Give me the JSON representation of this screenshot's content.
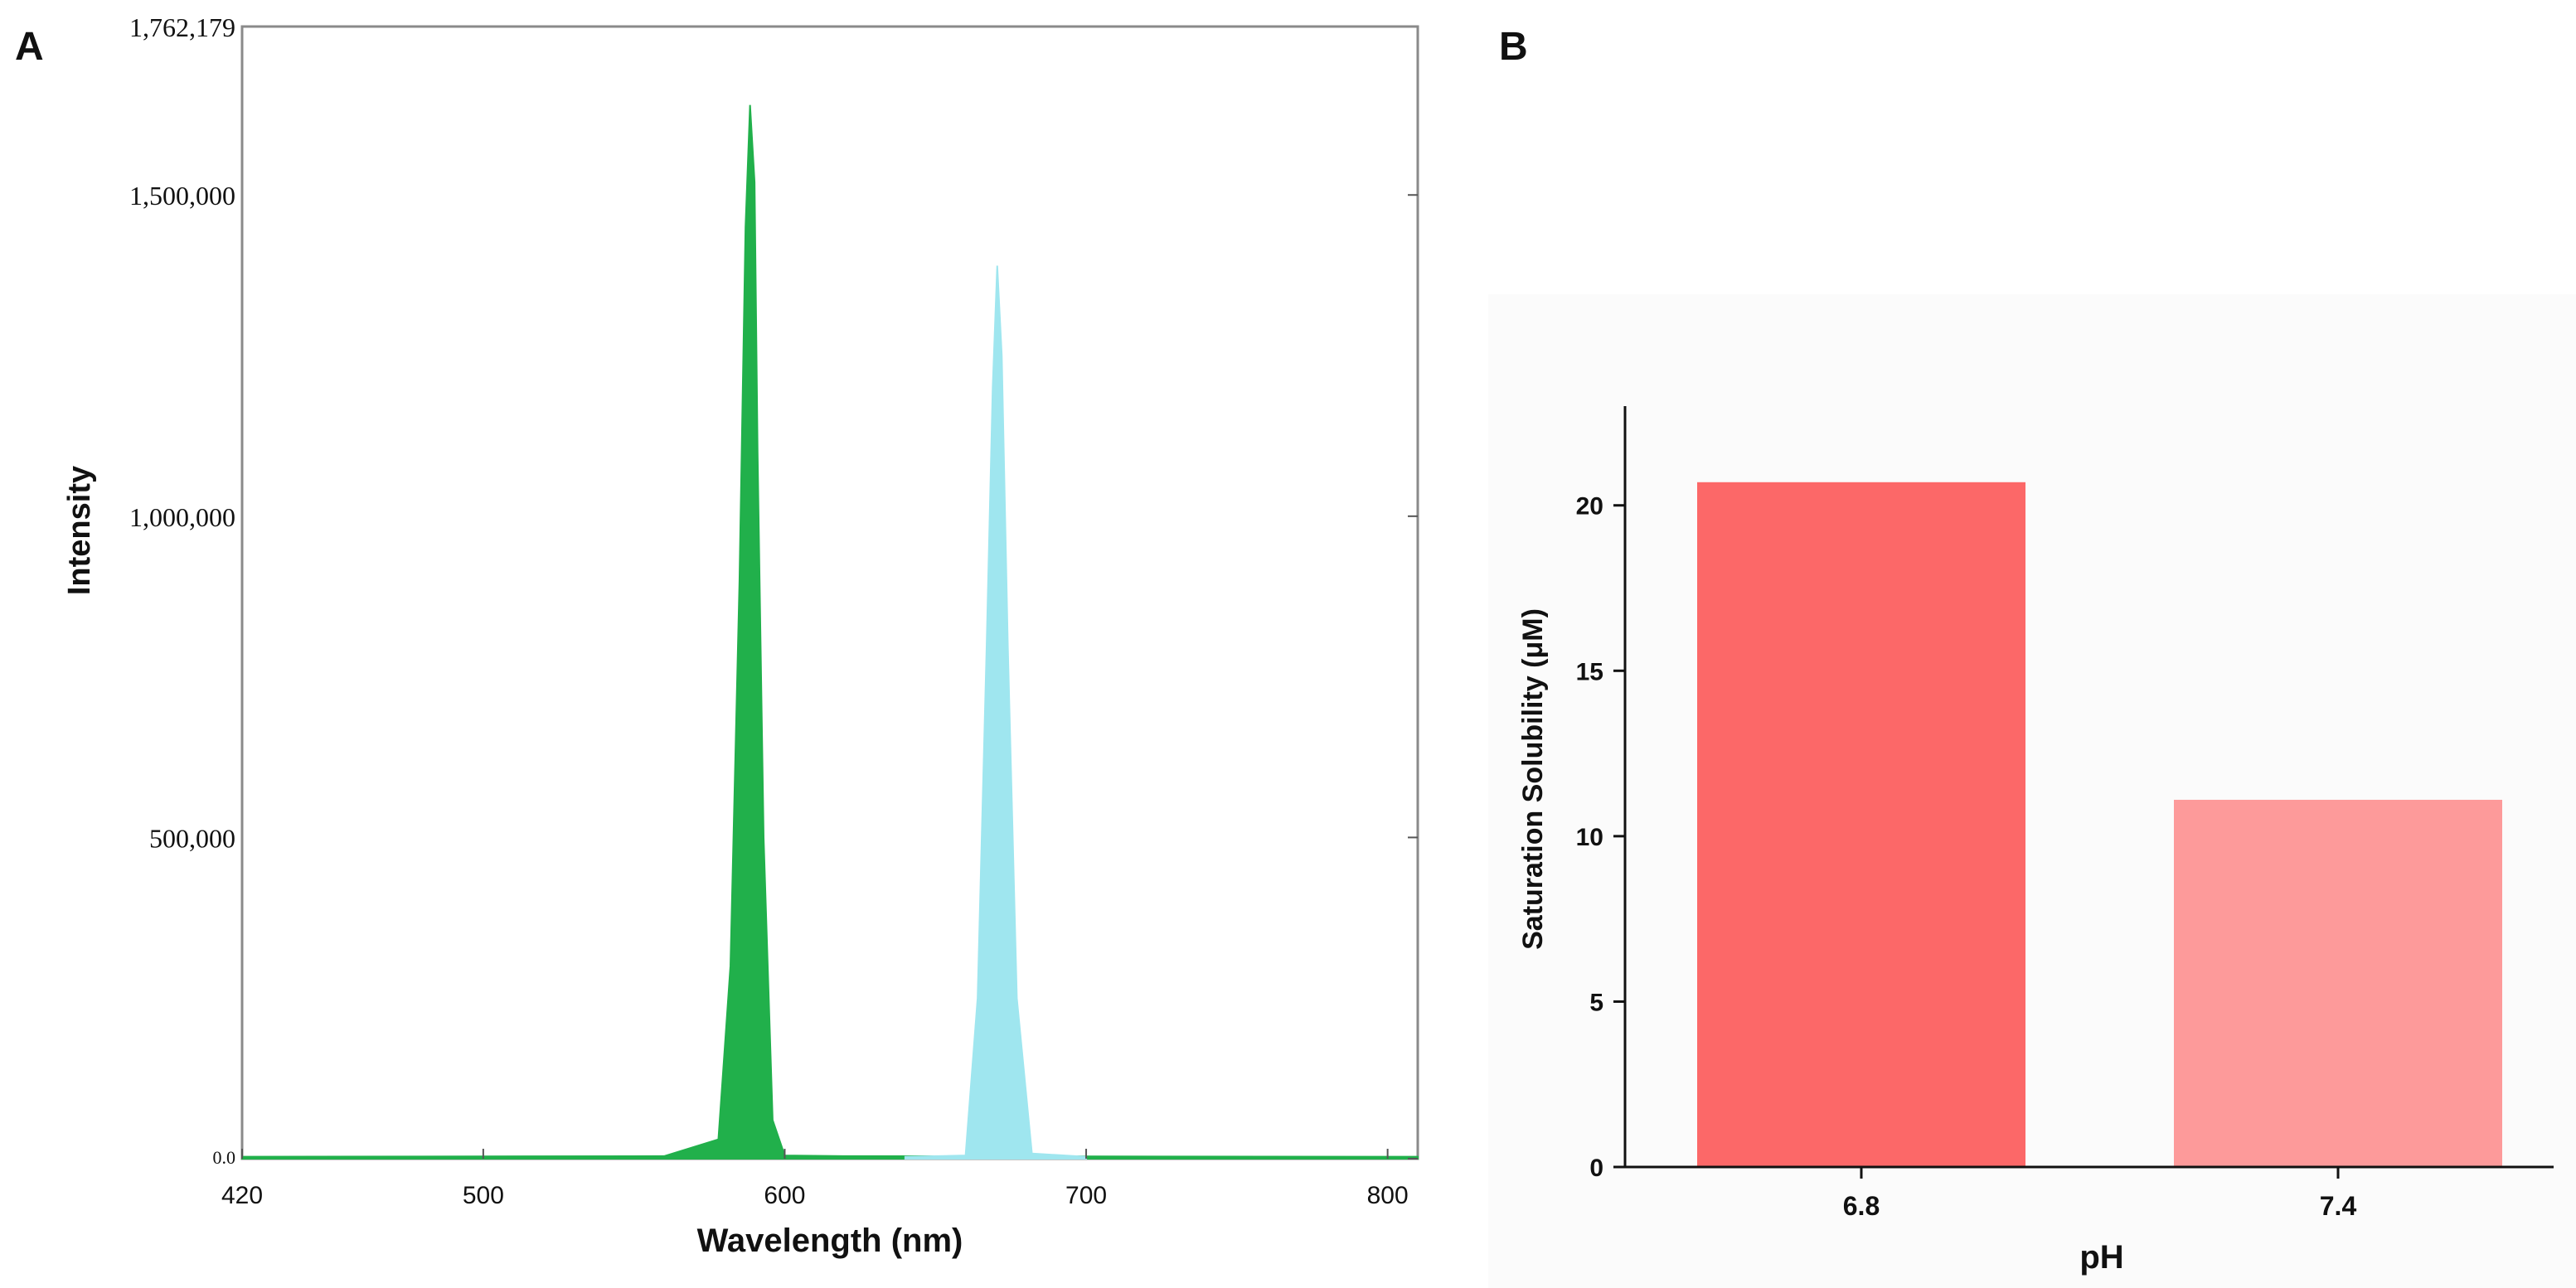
{
  "panels": [
    {
      "label": "A",
      "chart_data": {
        "type": "area",
        "title": "",
        "xlabel": "Wavelength (nm)",
        "ylabel": "Intensity",
        "xlim": [
          420,
          810
        ],
        "ylim": [
          0,
          1762179
        ],
        "x_ticks": [
          420,
          500,
          600,
          700,
          800
        ],
        "x_tick_labels": [
          "420",
          "500",
          "600",
          "700",
          "800"
        ],
        "y_ticks": [
          0,
          500000,
          1000000,
          1500000,
          1762179
        ],
        "y_tick_labels": [
          "0.0",
          "500,000",
          "1,000,000",
          "1,500,000",
          "1,762,179"
        ],
        "grid": false,
        "series": [
          {
            "name": "green peak",
            "color": "#21b04b",
            "x": [
              420,
              560,
              578,
              582,
              585,
              587,
              588.5,
              590,
              591,
              593,
              596,
              600,
              620,
              810
            ],
            "y": [
              3000,
              4000,
              30000,
              300000,
              900000,
              1450000,
              1640000,
              1520000,
              1100000,
              500000,
              60000,
              5000,
              4000,
              3000
            ]
          },
          {
            "name": "cyan peak",
            "color": "#9fe6ef",
            "x": [
              640,
              660,
              664,
              667,
              669,
              670.5,
              672,
              674,
              677,
              682,
              700
            ],
            "y": [
              3000,
              5000,
              250000,
              800000,
              1200000,
              1390000,
              1250000,
              800000,
              250000,
              8000,
              3000
            ]
          }
        ]
      }
    },
    {
      "label": "B",
      "chart_data": {
        "type": "bar",
        "title": "",
        "xlabel": "pH",
        "ylabel": "Saturation Solubility (μM)",
        "categories": [
          "6.8",
          "7.4"
        ],
        "values": [
          20.7,
          11.1
        ],
        "colors": [
          "#fc6868",
          "#fd9a9a"
        ],
        "ylim": [
          0,
          23
        ],
        "y_ticks": [
          0,
          5,
          10,
          15,
          20
        ],
        "y_tick_labels": [
          "0",
          "5",
          "10",
          "15",
          "20"
        ],
        "grid": false
      }
    }
  ]
}
